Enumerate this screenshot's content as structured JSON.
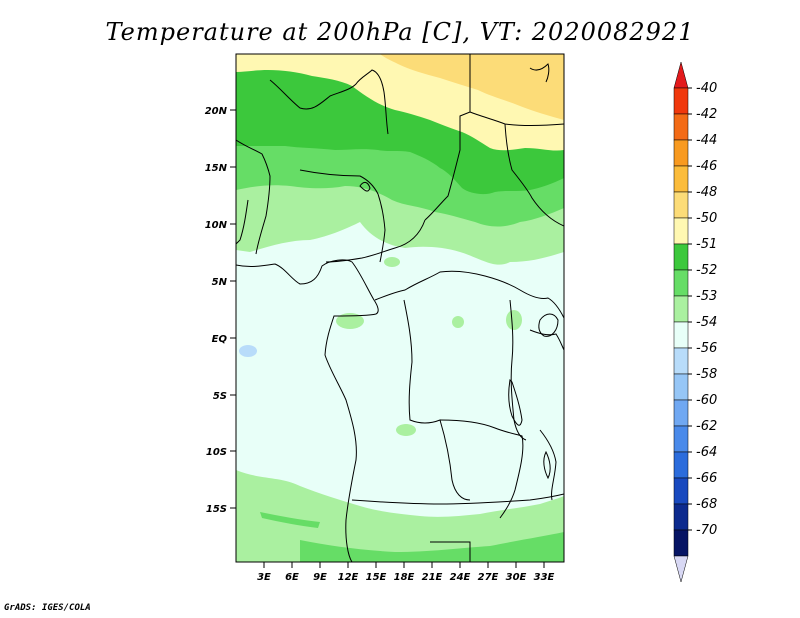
{
  "title": "Temperature at 200hPa [C], VT: 2020082921",
  "credit": "GrADS: IGES/COLA",
  "map": {
    "lat_labels": [
      "20N",
      "15N",
      "10N",
      "5N",
      "EQ",
      "5S",
      "10S",
      "15S"
    ],
    "lon_labels": [
      "3E",
      "6E",
      "9E",
      "12E",
      "15E",
      "18E",
      "21E",
      "24E",
      "27E",
      "30E",
      "33E"
    ]
  },
  "colorbar": {
    "labels": [
      "-40",
      "-42",
      "-44",
      "-46",
      "-48",
      "-50",
      "-51",
      "-52",
      "-53",
      "-54",
      "-56",
      "-58",
      "-60",
      "-62",
      "-64",
      "-66",
      "-68",
      "-70"
    ],
    "colors": [
      "#e31a1c",
      "#f0380c",
      "#f36b16",
      "#f89a20",
      "#fbbc3b",
      "#fcdc78",
      "#fff8b2",
      "#3cc83c",
      "#66dd66",
      "#aaf0a0",
      "#e8fff8",
      "#b8dcfa",
      "#96c6f6",
      "#70a8f2",
      "#4a8aea",
      "#2b6cdc",
      "#1849bf",
      "#0c2a8e",
      "#061464"
    ],
    "under_color": "#d8d8f4"
  }
}
